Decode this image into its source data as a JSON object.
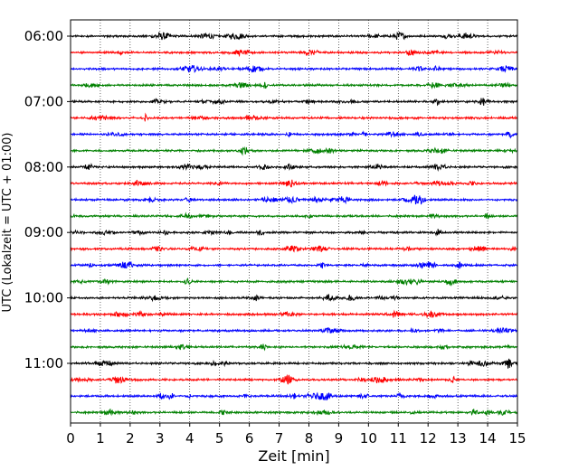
{
  "chart_data": {
    "type": "line",
    "title": "",
    "xlabel": "Zeit  [min]",
    "ylabel": "UTC (Lokalzeit = UTC + 01:00)",
    "xlim": [
      0,
      15
    ],
    "x_ticks": [
      "0",
      "1",
      "2",
      "3",
      "4",
      "5",
      "6",
      "7",
      "8",
      "9",
      "10",
      "11",
      "12",
      "13",
      "14",
      "15"
    ],
    "y_tick_labels": [
      "06:00",
      "07:00",
      "08:00",
      "09:00",
      "10:00",
      "11:00"
    ],
    "grid": "vertical dotted lines at each minute",
    "trace_interval_min": 15,
    "trace_start": "06:00",
    "trace_count": 24,
    "trace_colors": [
      "#000000",
      "#ff0000",
      "#0000ff",
      "#008000"
    ],
    "trace_offsets_hhmm": [
      "06:00",
      "06:15",
      "06:30",
      "06:45",
      "07:00",
      "07:15",
      "07:30",
      "07:45",
      "08:00",
      "08:15",
      "08:30",
      "08:45",
      "09:00",
      "09:15",
      "09:30",
      "09:45",
      "10:00",
      "10:15",
      "10:30",
      "10:45",
      "11:00",
      "11:15",
      "11:30",
      "11:45"
    ]
  }
}
